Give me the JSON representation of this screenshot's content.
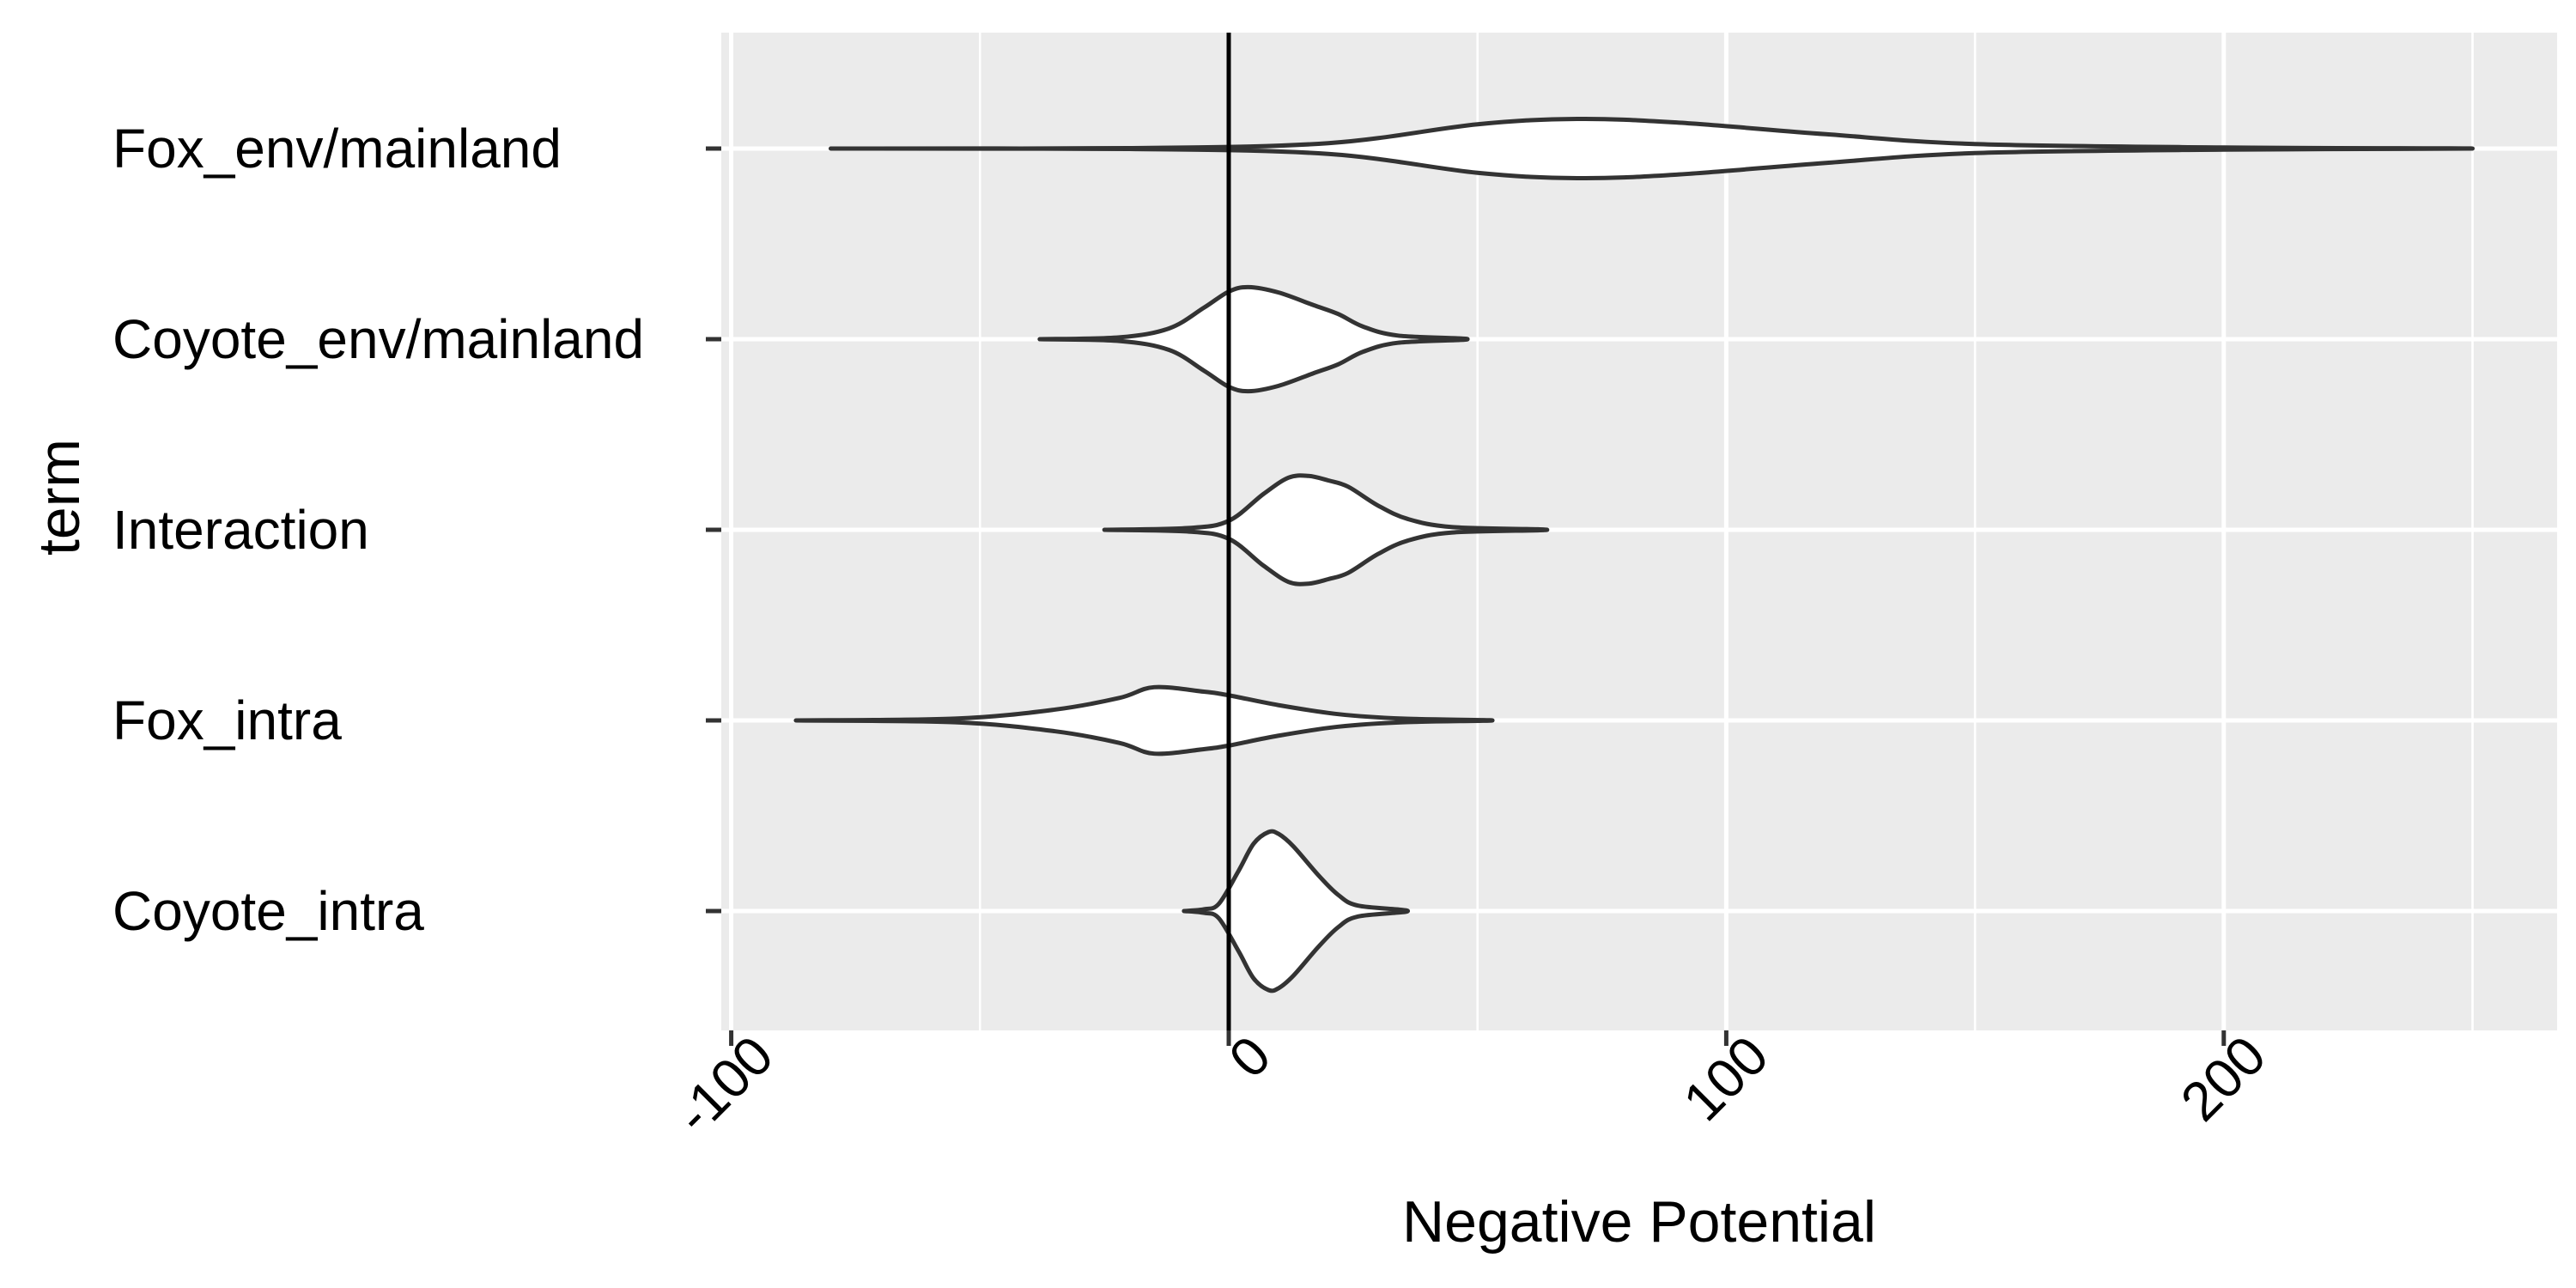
{
  "chart_data": {
    "type": "violin",
    "orientation": "horizontal",
    "xlabel": "Negative Potential",
    "ylabel": "term",
    "xlim": [
      -102,
      267
    ],
    "x_ticks": [
      -100,
      0,
      100,
      200
    ],
    "x_tick_labels": [
      "-100",
      "0",
      "100",
      "200"
    ],
    "x_minor_ticks": [
      -50,
      50,
      150,
      250
    ],
    "x_tick_label_rotation": -45,
    "reference_line_x": 0,
    "grid": true,
    "panel_background": "#EBEBEB",
    "violin_fill": "#FFFFFF",
    "violin_outline": "#333333",
    "categories": [
      "Fox_env/mainland",
      "Coyote_env/mainland",
      "Interaction",
      "Fox_intra",
      "Coyote_intra"
    ],
    "series": [
      {
        "category": "Fox_env/mainland",
        "min": -80,
        "max": 250,
        "density": [
          [
            -80,
            0.0
          ],
          [
            -20,
            0.005
          ],
          [
            20,
            0.06
          ],
          [
            50,
            0.27
          ],
          [
            70,
            0.33
          ],
          [
            90,
            0.29
          ],
          [
            120,
            0.16
          ],
          [
            150,
            0.05
          ],
          [
            200,
            0.012
          ],
          [
            250,
            0.0
          ]
        ]
      },
      {
        "category": "Coyote_env/mainland",
        "min": -38,
        "max": 48,
        "density": [
          [
            -38,
            0.0
          ],
          [
            -22,
            0.02
          ],
          [
            -12,
            0.12
          ],
          [
            -5,
            0.35
          ],
          [
            0,
            0.53
          ],
          [
            4,
            0.58
          ],
          [
            10,
            0.52
          ],
          [
            17,
            0.38
          ],
          [
            22,
            0.28
          ],
          [
            27,
            0.14
          ],
          [
            34,
            0.04
          ],
          [
            48,
            0.0
          ]
        ]
      },
      {
        "category": "Interaction",
        "min": -25,
        "max": 64,
        "density": [
          [
            -25,
            0.0
          ],
          [
            -8,
            0.02
          ],
          [
            0,
            0.1
          ],
          [
            7,
            0.4
          ],
          [
            12,
            0.58
          ],
          [
            16,
            0.6
          ],
          [
            20,
            0.55
          ],
          [
            24,
            0.48
          ],
          [
            30,
            0.27
          ],
          [
            36,
            0.12
          ],
          [
            45,
            0.03
          ],
          [
            64,
            0.0
          ]
        ]
      },
      {
        "category": "Fox_intra",
        "min": -87,
        "max": 53,
        "density": [
          [
            -87,
            0.0
          ],
          [
            -55,
            0.02
          ],
          [
            -35,
            0.12
          ],
          [
            -22,
            0.25
          ],
          [
            -15,
            0.37
          ],
          [
            -5,
            0.32
          ],
          [
            0,
            0.28
          ],
          [
            10,
            0.17
          ],
          [
            22,
            0.07
          ],
          [
            35,
            0.02
          ],
          [
            53,
            0.0
          ]
        ]
      },
      {
        "category": "Coyote_intra",
        "min": -9,
        "max": 36,
        "density": [
          [
            -9,
            0.0
          ],
          [
            -5,
            0.02
          ],
          [
            -2,
            0.08
          ],
          [
            2,
            0.45
          ],
          [
            5,
            0.75
          ],
          [
            8,
            0.88
          ],
          [
            10,
            0.86
          ],
          [
            13,
            0.72
          ],
          [
            18,
            0.4
          ],
          [
            22,
            0.18
          ],
          [
            26,
            0.06
          ],
          [
            36,
            0.0
          ]
        ]
      }
    ]
  }
}
